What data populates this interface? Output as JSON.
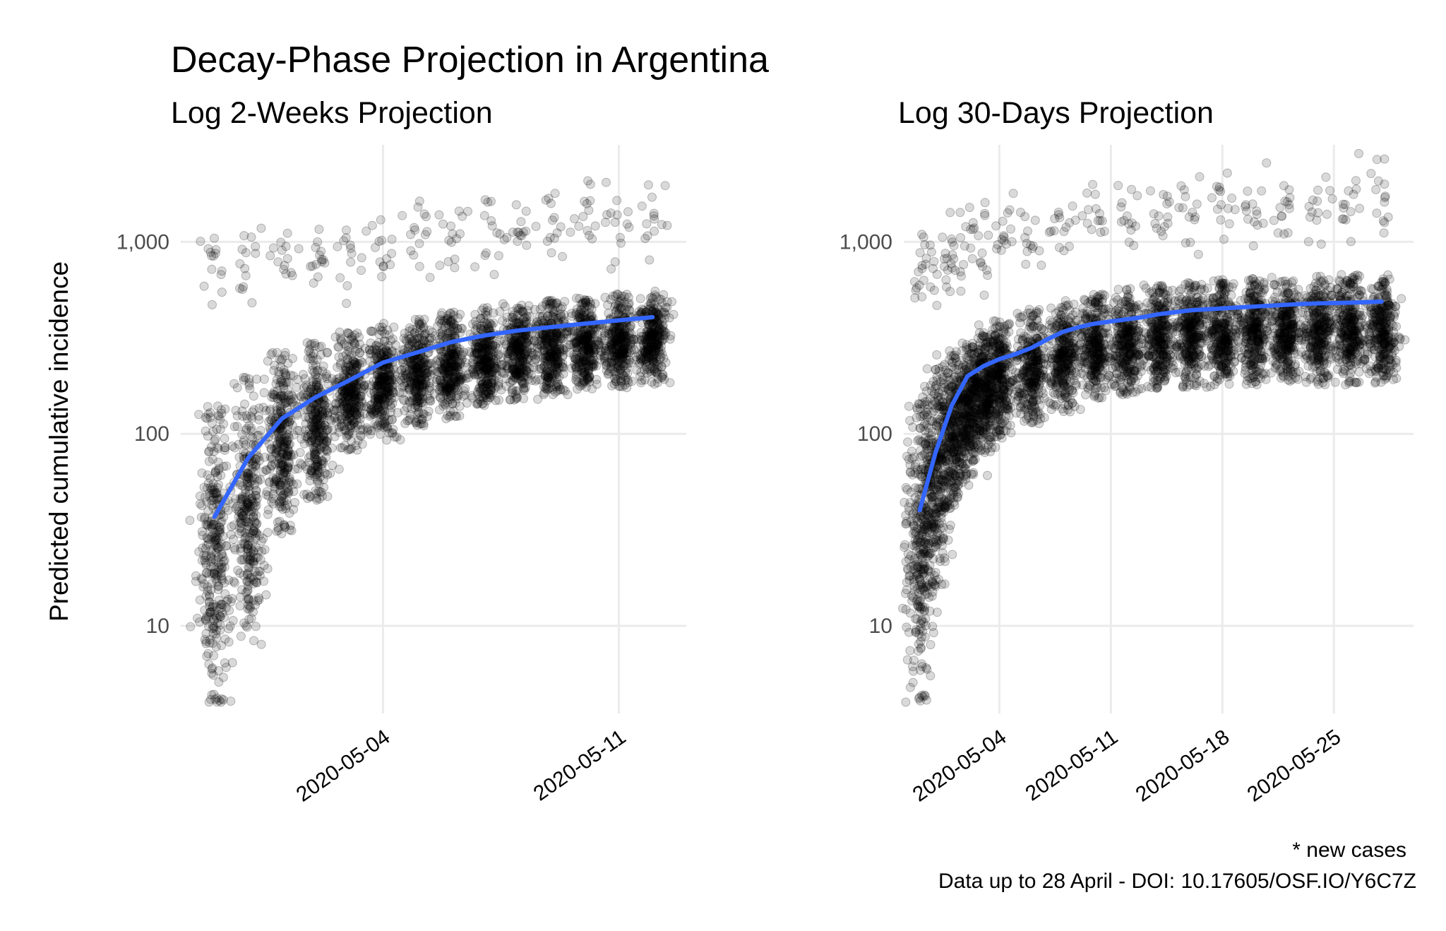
{
  "title": "Decay-Phase Projection in Argentina",
  "caption_line1": "* new cases",
  "caption_line2": "Data up to 28 April - DOI: 10.17605/OSF.IO/Y6C7Z",
  "ylabel": "Predicted cumulative incidence",
  "colors": {
    "points": "#000000",
    "trend": "#3366ff",
    "grid": "#ebebeb"
  },
  "chart_data": [
    {
      "type": "scatter",
      "subtitle": "Log 2-Weeks Projection",
      "ylabel": "Predicted cumulative incidence",
      "yscale": "log10",
      "ylim": [
        3.5,
        3200
      ],
      "xlim": [
        "2020-04-28",
        "2020-05-13"
      ],
      "x_ticks": [
        "2020-05-04",
        "2020-05-11"
      ],
      "y_ticks": [
        10,
        100,
        1000
      ],
      "y_tick_labels": [
        "10",
        "100",
        "1,000"
      ],
      "grid": true,
      "point_alpha": 0.15,
      "point_distributions": [
        {
          "date": "2020-04-29",
          "low": 4,
          "high": 140,
          "outlier_cluster": 720
        },
        {
          "date": "2020-04-30",
          "low": 8,
          "high": 200,
          "outlier_cluster": 780
        },
        {
          "date": "2020-05-01",
          "low": 30,
          "high": 270,
          "outlier_cluster": 800
        },
        {
          "date": "2020-05-02",
          "low": 45,
          "high": 300,
          "outlier_cluster": 830
        },
        {
          "date": "2020-05-03",
          "low": 80,
          "high": 340,
          "outlier_cluster": 880
        },
        {
          "date": "2020-05-04",
          "low": 90,
          "high": 380,
          "outlier_cluster": 950
        },
        {
          "date": "2020-05-05",
          "low": 110,
          "high": 400,
          "outlier_cluster": 1000
        },
        {
          "date": "2020-05-06",
          "low": 120,
          "high": 430,
          "outlier_cluster": 1050
        },
        {
          "date": "2020-05-07",
          "low": 140,
          "high": 460,
          "outlier_cluster": 1100
        },
        {
          "date": "2020-05-08",
          "low": 150,
          "high": 480,
          "outlier_cluster": 1150
        },
        {
          "date": "2020-05-09",
          "low": 160,
          "high": 500,
          "outlier_cluster": 1200
        },
        {
          "date": "2020-05-10",
          "low": 170,
          "high": 520,
          "outlier_cluster": 1250
        },
        {
          "date": "2020-05-11",
          "low": 170,
          "high": 540,
          "outlier_cluster": 1300
        },
        {
          "date": "2020-05-12",
          "low": 180,
          "high": 560,
          "outlier_cluster": 1350
        }
      ],
      "trend": {
        "x": [
          "2020-04-29",
          "2020-04-30",
          "2020-05-01",
          "2020-05-02",
          "2020-05-03",
          "2020-05-04",
          "2020-05-05",
          "2020-05-06",
          "2020-05-07",
          "2020-05-08",
          "2020-05-09",
          "2020-05-10",
          "2020-05-11",
          "2020-05-12"
        ],
        "y": [
          37,
          75,
          120,
          155,
          190,
          235,
          265,
          300,
          325,
          345,
          360,
          375,
          390,
          405
        ]
      }
    },
    {
      "type": "scatter",
      "subtitle": "Log 30-Days Projection",
      "ylabel": "",
      "yscale": "log10",
      "ylim": [
        3.5,
        3200
      ],
      "xlim": [
        "2020-04-28",
        "2020-05-30"
      ],
      "x_ticks": [
        "2020-05-04",
        "2020-05-11",
        "2020-05-18",
        "2020-05-25"
      ],
      "y_ticks": [
        10,
        100,
        1000
      ],
      "y_tick_labels": [
        "10",
        "100",
        "1,000"
      ],
      "grid": true,
      "point_alpha": 0.15,
      "point_distributions": [
        {
          "date": "2020-04-29",
          "low": 4,
          "high": 150,
          "outlier_cluster": 730
        },
        {
          "date": "2020-04-30",
          "low": 16,
          "high": 220,
          "outlier_cluster": 800
        },
        {
          "date": "2020-05-01",
          "low": 40,
          "high": 260,
          "outlier_cluster": 850
        },
        {
          "date": "2020-05-02",
          "low": 60,
          "high": 300,
          "outlier_cluster": 900
        },
        {
          "date": "2020-05-03",
          "low": 80,
          "high": 340,
          "outlier_cluster": 950
        },
        {
          "date": "2020-05-04",
          "low": 95,
          "high": 400,
          "outlier_cluster": 1000
        },
        {
          "date": "2020-05-06",
          "low": 110,
          "high": 450,
          "outlier_cluster": 1100
        },
        {
          "date": "2020-05-08",
          "low": 130,
          "high": 500,
          "outlier_cluster": 1200
        },
        {
          "date": "2020-05-10",
          "low": 150,
          "high": 540,
          "outlier_cluster": 1300
        },
        {
          "date": "2020-05-12",
          "low": 160,
          "high": 570,
          "outlier_cluster": 1400
        },
        {
          "date": "2020-05-14",
          "low": 170,
          "high": 600,
          "outlier_cluster": 1450
        },
        {
          "date": "2020-05-16",
          "low": 175,
          "high": 620,
          "outlier_cluster": 1500
        },
        {
          "date": "2020-05-18",
          "low": 180,
          "high": 640,
          "outlier_cluster": 1500
        },
        {
          "date": "2020-05-20",
          "low": 180,
          "high": 650,
          "outlier_cluster": 1550
        },
        {
          "date": "2020-05-22",
          "low": 180,
          "high": 660,
          "outlier_cluster": 1550
        },
        {
          "date": "2020-05-24",
          "low": 180,
          "high": 670,
          "outlier_cluster": 1550
        },
        {
          "date": "2020-05-26",
          "low": 180,
          "high": 680,
          "outlier_cluster": 1600
        },
        {
          "date": "2020-05-28",
          "low": 180,
          "high": 690,
          "outlier_cluster": 1600
        }
      ],
      "trend": {
        "x": [
          "2020-04-29",
          "2020-04-30",
          "2020-05-01",
          "2020-05-02",
          "2020-05-03",
          "2020-05-04",
          "2020-05-05",
          "2020-05-06",
          "2020-05-07",
          "2020-05-08",
          "2020-05-09",
          "2020-05-10",
          "2020-05-11",
          "2020-05-12",
          "2020-05-13",
          "2020-05-14",
          "2020-05-15",
          "2020-05-16",
          "2020-05-17",
          "2020-05-18",
          "2020-05-19",
          "2020-05-20",
          "2020-05-21",
          "2020-05-22",
          "2020-05-23",
          "2020-05-24",
          "2020-05-25",
          "2020-05-26",
          "2020-05-27",
          "2020-05-28"
        ],
        "y": [
          40,
          80,
          140,
          200,
          225,
          245,
          260,
          280,
          310,
          340,
          360,
          375,
          385,
          395,
          405,
          420,
          430,
          440,
          445,
          450,
          455,
          460,
          465,
          470,
          475,
          478,
          480,
          482,
          485,
          488
        ]
      }
    }
  ]
}
